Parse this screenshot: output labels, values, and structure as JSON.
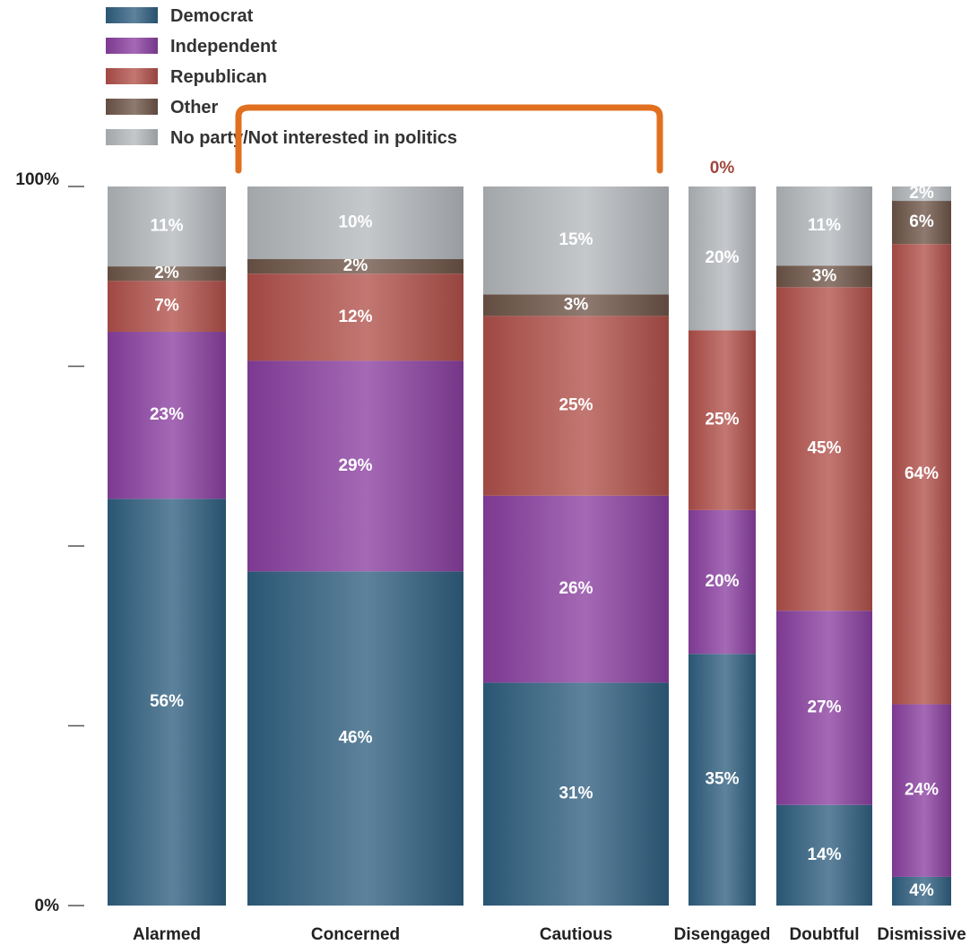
{
  "chart_data": {
    "type": "bar",
    "stacked": true,
    "categories": [
      "Alarmed",
      "Concerned",
      "Cautious",
      "Disengaged",
      "Doubtful",
      "Dismissive"
    ],
    "series": [
      {
        "name": "Democrat",
        "color": "#2f5f80",
        "values": [
          56,
          46,
          31,
          35,
          14,
          4
        ]
      },
      {
        "name": "Independent",
        "color": "#8a3fa0",
        "values": [
          23,
          29,
          26,
          20,
          27,
          24
        ]
      },
      {
        "name": "Republican",
        "color": "#b2504a",
        "values": [
          7,
          12,
          25,
          25,
          45,
          64
        ]
      },
      {
        "name": "Other",
        "color": "#6e5548",
        "values": [
          2,
          2,
          3,
          0,
          3,
          6
        ]
      },
      {
        "name": "No party/Not interested in politics",
        "color": "#b4b8bc",
        "values": [
          11,
          10,
          15,
          20,
          11,
          2
        ]
      }
    ],
    "y_ticks": [
      "0%",
      "100%"
    ],
    "ylim": [
      0,
      100
    ],
    "annotations": [
      {
        "text": "0%",
        "category": "Disengaged",
        "color": "#a0463e"
      }
    ],
    "bracket": {
      "from": "Concerned",
      "to": "Cautious",
      "color": "#e07020"
    },
    "legend_position": "top-left"
  }
}
